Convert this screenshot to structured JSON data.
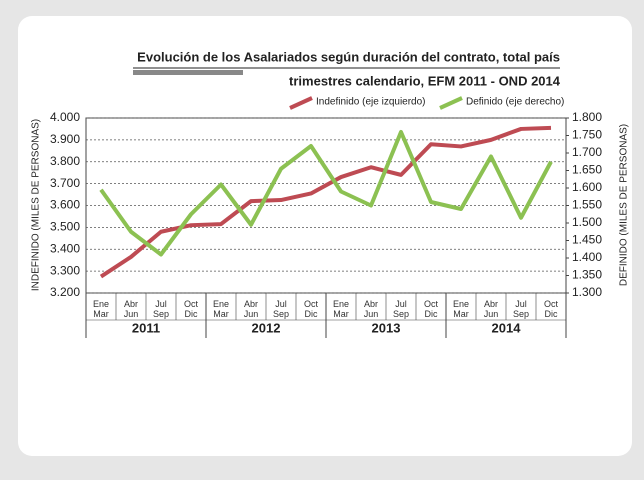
{
  "chart_data": {
    "type": "line",
    "title": "Evolución de los Asalariados según duración del contrato, total país",
    "subtitle": "trimestres calendario, EFM 2011 - OND 2014",
    "y_label": "INDEFINIDO (MILES DE PERSONAS)",
    "y2_label": "DEFINIDO (MILES DE PERSONAS)",
    "categories": [
      "Ene Mar",
      "Abr Jun",
      "Jul Sep",
      "Oct Dic",
      "Ene Mar",
      "Abr Jun",
      "Jul Sep",
      "Oct Dic",
      "Ene Mar",
      "Abr Jun",
      "Jul Sep",
      "Oct Dic",
      "Ene Mar",
      "Abr Jun",
      "Jul Sep",
      "Oct Dic"
    ],
    "years": [
      "2011",
      "2012",
      "2013",
      "2014"
    ],
    "series": [
      {
        "name": "Indefinido (eje izquierdo)",
        "color": "#be4b53",
        "values": [
          3275,
          3365,
          3480,
          3510,
          3515,
          3620,
          3625,
          3655,
          3730,
          3775,
          3740,
          3880,
          3870,
          3900,
          3950,
          3955
        ]
      },
      {
        "name": "Definido (eje derecho)",
        "color": "#8cc152",
        "axis": "y2",
        "values": [
          1595,
          1475,
          1410,
          1525,
          1610,
          1495,
          1655,
          1720,
          1590,
          1550,
          1760,
          1560,
          1540,
          1690,
          1515,
          1675
        ]
      }
    ],
    "ylim": [
      3200,
      4000
    ],
    "yticks": [
      {
        "value": 3200,
        "label": "3.200"
      },
      {
        "value": 3300,
        "label": "3.300"
      },
      {
        "value": 3400,
        "label": "3.400"
      },
      {
        "value": 3500,
        "label": "3.500"
      },
      {
        "value": 3600,
        "label": "3.600"
      },
      {
        "value": 3700,
        "label": "3.700"
      },
      {
        "value": 3800,
        "label": "3.800"
      },
      {
        "value": 3900,
        "label": "3.900"
      },
      {
        "value": 4000,
        "label": "4.000"
      }
    ],
    "y2lim": [
      1300,
      1800
    ],
    "y2ticks": [
      {
        "value": 1300,
        "label": "1.300"
      },
      {
        "value": 1350,
        "label": "1.350"
      },
      {
        "value": 1400,
        "label": "1.400"
      },
      {
        "value": 1450,
        "label": "1.450"
      },
      {
        "value": 1500,
        "label": "1.500"
      },
      {
        "value": 1550,
        "label": "1.550"
      },
      {
        "value": 1600,
        "label": "1.600"
      },
      {
        "value": 1650,
        "label": "1.650"
      },
      {
        "value": 1700,
        "label": "1.700"
      },
      {
        "value": 1750,
        "label": "1.750"
      },
      {
        "value": 1800,
        "label": "1.800"
      }
    ],
    "grid": true
  }
}
